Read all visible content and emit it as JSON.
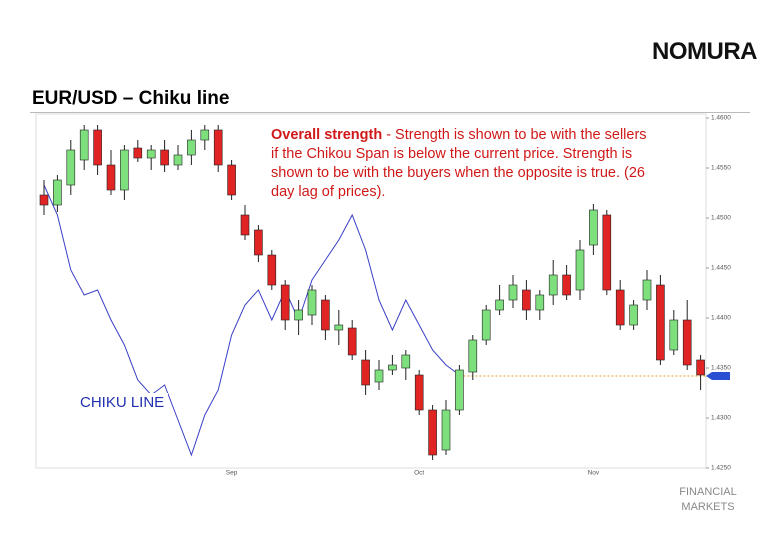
{
  "header": {
    "logo": "NOMURA",
    "title": "EUR/USD – Chiku line"
  },
  "footer": {
    "lines": [
      "FINANCIAL",
      "MARKETS"
    ]
  },
  "chart_data": {
    "type": "candlestick",
    "annotation": {
      "title": "Overall strength",
      "text": "- Strength is shown to be with the sellers if the Chikou Span is below the current price. Strength is shown to be with the buyers when the opposite is true. (26 day lag of prices)."
    },
    "categories": [
      null,
      null,
      null,
      null,
      null,
      null,
      null,
      null,
      null,
      null,
      null,
      null,
      null,
      null,
      "Sep",
      null,
      null,
      null,
      null,
      null,
      null,
      null,
      null,
      null,
      null,
      null,
      null,
      null,
      "Oct",
      null,
      null,
      null,
      null,
      null,
      null,
      null,
      null,
      null,
      null,
      null,
      null,
      "Nov",
      null,
      null,
      null,
      null,
      null,
      null,
      null,
      null
    ],
    "open": [
      1.4523,
      1.4513,
      1.4533,
      1.4558,
      1.4588,
      1.4553,
      1.4528,
      1.457,
      1.456,
      1.4568,
      1.4553,
      1.4563,
      1.4578,
      1.4588,
      1.4553,
      1.4503,
      1.4488,
      1.4463,
      1.4433,
      1.4398,
      1.4403,
      1.4418,
      1.4388,
      1.439,
      1.4358,
      1.4336,
      1.4348,
      1.435,
      1.4343,
      1.4308,
      1.4268,
      1.4308,
      1.4346,
      1.4378,
      1.4408,
      1.4418,
      1.4428,
      1.4408,
      1.4423,
      1.4443,
      1.4428,
      1.4473,
      1.4503,
      1.4428,
      1.4393,
      1.4418,
      1.4433,
      1.4368,
      1.4398,
      1.4358
    ],
    "high": [
      1.4538,
      1.4543,
      1.4578,
      1.4593,
      1.4593,
      1.4568,
      1.4573,
      1.4578,
      1.4573,
      1.4578,
      1.4573,
      1.4588,
      1.4593,
      1.4593,
      1.4558,
      1.4513,
      1.4493,
      1.4468,
      1.4438,
      1.4418,
      1.4433,
      1.4423,
      1.4408,
      1.4398,
      1.4368,
      1.4358,
      1.4363,
      1.4368,
      1.4348,
      1.4313,
      1.4318,
      1.4353,
      1.4383,
      1.4413,
      1.4433,
      1.4443,
      1.4438,
      1.4428,
      1.4458,
      1.4453,
      1.4478,
      1.4523,
      1.4508,
      1.4438,
      1.4418,
      1.4448,
      1.4443,
      1.4408,
      1.4418,
      1.4363
    ],
    "low": [
      1.4503,
      1.4506,
      1.4523,
      1.4548,
      1.4543,
      1.4523,
      1.4518,
      1.4556,
      1.4548,
      1.4546,
      1.4548,
      1.4553,
      1.4568,
      1.4546,
      1.4518,
      1.4478,
      1.4456,
      1.4428,
      1.4388,
      1.4383,
      1.4393,
      1.4378,
      1.4373,
      1.4358,
      1.4323,
      1.4328,
      1.4343,
      1.4338,
      1.4303,
      1.4258,
      1.4263,
      1.4303,
      1.4338,
      1.4373,
      1.4403,
      1.441,
      1.4398,
      1.4398,
      1.4413,
      1.4418,
      1.4418,
      1.4463,
      1.4423,
      1.4388,
      1.4388,
      1.4408,
      1.4353,
      1.4363,
      1.4348,
      1.4328
    ],
    "close": [
      1.4513,
      1.4538,
      1.4568,
      1.4588,
      1.4553,
      1.4528,
      1.4568,
      1.456,
      1.4568,
      1.4553,
      1.4563,
      1.4578,
      1.4588,
      1.4553,
      1.4523,
      1.4483,
      1.4463,
      1.4433,
      1.4398,
      1.4408,
      1.4428,
      1.4388,
      1.4393,
      1.4363,
      1.4333,
      1.4348,
      1.4353,
      1.4363,
      1.4308,
      1.4263,
      1.4308,
      1.4348,
      1.4378,
      1.4408,
      1.4418,
      1.4433,
      1.4408,
      1.4423,
      1.4443,
      1.4423,
      1.4468,
      1.4508,
      1.4428,
      1.4393,
      1.4413,
      1.4438,
      1.4358,
      1.4398,
      1.4353,
      1.4343
    ],
    "up_color": "#7de07d",
    "down_color": "#e02424",
    "chikou": {
      "name": "CHIKU LINE",
      "color": "#3a3fc4",
      "values": [
        1.4533,
        1.4503,
        1.4448,
        1.4423,
        1.4428,
        1.4398,
        1.4373,
        1.4338,
        1.4323,
        1.4333,
        1.4298,
        1.4263,
        1.4303,
        1.4328,
        1.4383,
        1.4413,
        1.4428,
        1.4398,
        1.4428,
        1.4398,
        1.4438,
        1.4458,
        1.4478,
        1.4503,
        1.4468,
        1.4418,
        1.4388,
        1.4418,
        1.4393,
        1.4368,
        1.4353,
        1.4343,
        null,
        null,
        null,
        null,
        null,
        null,
        null,
        null,
        null,
        null,
        null,
        null,
        null,
        null,
        null,
        null,
        null,
        null
      ]
    },
    "current_price": 1.4342,
    "current_color": "#e0a020",
    "marker_color": "#2a4fd0",
    "ylim": [
      1.425,
      1.46
    ],
    "yticks": [
      {
        "value": 1.425,
        "label": "1.4250"
      },
      {
        "value": 1.43,
        "label": "1.4300"
      },
      {
        "value": 1.435,
        "label": "1.4350"
      },
      {
        "value": 1.44,
        "label": "1.4400"
      },
      {
        "value": 1.445,
        "label": "1.4450"
      },
      {
        "value": 1.45,
        "label": "1.4500"
      },
      {
        "value": 1.455,
        "label": "1.4550"
      },
      {
        "value": 1.46,
        "label": "1.4600"
      }
    ],
    "grid": false
  }
}
